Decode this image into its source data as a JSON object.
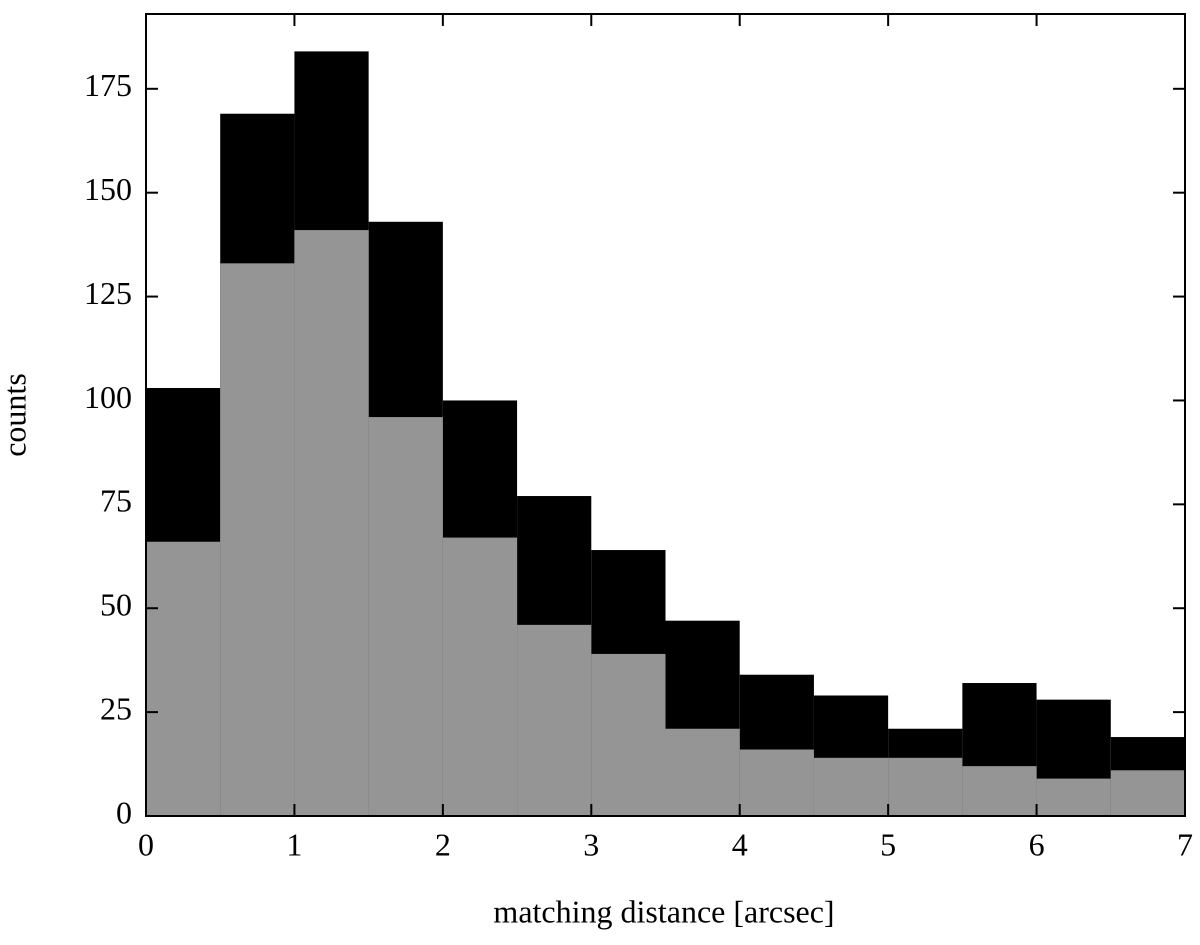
{
  "chart_data": {
    "type": "histogram",
    "xlabel": "matching distance [arcsec]",
    "ylabel": "counts",
    "bins": [
      0,
      0.5,
      1,
      1.5,
      2,
      2.5,
      3,
      3.5,
      4,
      4.5,
      5,
      5.5,
      6,
      6.5,
      7
    ],
    "series": [
      {
        "color": "#000000",
        "values": [
          103,
          169,
          184,
          143,
          100,
          77,
          64,
          47,
          34,
          29,
          21,
          32,
          28,
          19
        ]
      },
      {
        "color": "#959595",
        "values": [
          66,
          133,
          141,
          96,
          67,
          46,
          39,
          21,
          16,
          14,
          14,
          12,
          9,
          11
        ]
      }
    ],
    "xlim": [
      0,
      7
    ],
    "xticks": [
      0,
      1,
      2,
      3,
      4,
      5,
      6,
      7
    ],
    "ylim": [
      0,
      193
    ],
    "yticks": [
      0,
      25,
      50,
      75,
      100,
      125,
      150,
      175
    ],
    "grid": false
  }
}
